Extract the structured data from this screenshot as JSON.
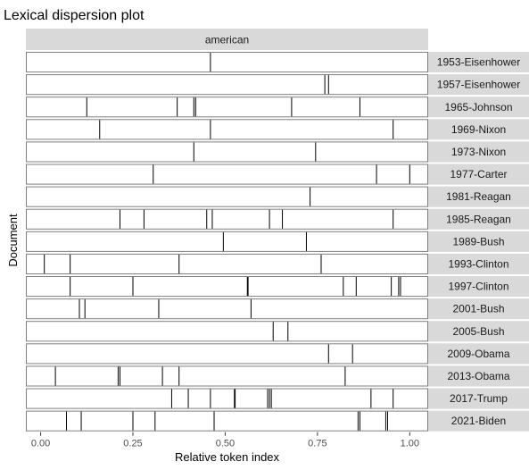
{
  "chart_data": {
    "type": "dispersion",
    "title": "Lexical dispersion plot",
    "facet_label": "american",
    "xlabel": "Relative token index",
    "ylabel": "Document",
    "xlim": [
      -0.04,
      1.05
    ],
    "x_ticks": [
      {
        "value": 0,
        "label": "0.00"
      },
      {
        "value": 0.25,
        "label": "0.25"
      },
      {
        "value": 0.5,
        "label": "0.50"
      },
      {
        "value": 0.75,
        "label": "0.75"
      },
      {
        "value": 1,
        "label": "1.00"
      }
    ],
    "documents": [
      {
        "name": "1953-Eisenhower",
        "positions": [
          0.46
        ]
      },
      {
        "name": "1957-Eisenhower",
        "positions": [
          0.77,
          0.78
        ]
      },
      {
        "name": "1965-Johnson",
        "positions": [
          0.125,
          0.37,
          0.415,
          0.42,
          0.68,
          0.865
        ]
      },
      {
        "name": "1969-Nixon",
        "positions": [
          0.16,
          0.46,
          0.955
        ]
      },
      {
        "name": "1973-Nixon",
        "positions": [
          0.415,
          0.745
        ]
      },
      {
        "name": "1977-Carter",
        "positions": [
          0.305,
          0.91,
          1.0
        ]
      },
      {
        "name": "1981-Reagan",
        "positions": [
          0.73
        ]
      },
      {
        "name": "1985-Reagan",
        "positions": [
          0.215,
          0.28,
          0.45,
          0.465,
          0.62,
          0.655,
          0.955
        ]
      },
      {
        "name": "1989-Bush",
        "positions": [
          0.495,
          0.72
        ]
      },
      {
        "name": "1993-Clinton",
        "positions": [
          0.01,
          0.08,
          0.375,
          0.76
        ]
      },
      {
        "name": "1997-Clinton",
        "positions": [
          0.08,
          0.25,
          0.56,
          0.562,
          0.82,
          0.855,
          0.95,
          0.97,
          0.975
        ]
      },
      {
        "name": "2001-Bush",
        "positions": [
          0.105,
          0.12,
          0.32,
          0.57
        ]
      },
      {
        "name": "2005-Bush",
        "positions": [
          0.63,
          0.67
        ]
      },
      {
        "name": "2009-Obama",
        "positions": [
          0.78,
          0.845
        ]
      },
      {
        "name": "2013-Obama",
        "positions": [
          0.04,
          0.21,
          0.215,
          0.33,
          0.375,
          0.825
        ]
      },
      {
        "name": "2017-Trump",
        "positions": [
          0.355,
          0.4,
          0.46,
          0.525,
          0.527,
          0.615,
          0.62,
          0.625,
          0.895,
          0.955
        ]
      },
      {
        "name": "2021-Biden",
        "positions": [
          0.07,
          0.11,
          0.25,
          0.31,
          0.47,
          0.86,
          0.865,
          0.935,
          0.94
        ]
      }
    ]
  }
}
